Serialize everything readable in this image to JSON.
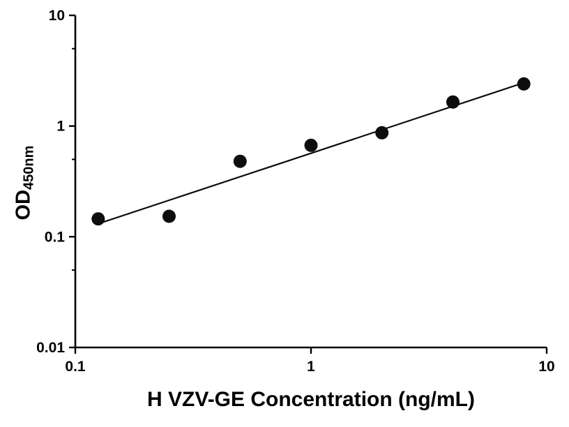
{
  "chart_data": {
    "type": "scatter",
    "title": "",
    "xlabel": "H VZV-GE Concentration (ng/mL)",
    "ylabel": "OD",
    "ylabel_subscript": "450nm",
    "x_scale": "log",
    "y_scale": "log",
    "xlim": [
      0.1,
      10
    ],
    "ylim": [
      0.01,
      10
    ],
    "x_ticks": [
      {
        "value": 0.1,
        "label": "0.1"
      },
      {
        "value": 1,
        "label": "1"
      },
      {
        "value": 10,
        "label": "10"
      }
    ],
    "y_ticks": [
      {
        "value": 10,
        "label": "10"
      },
      {
        "value": 1,
        "label": "1"
      },
      {
        "value": 0.1,
        "label": "0.1"
      },
      {
        "value": 0.01,
        "label": "0.01"
      }
    ],
    "y_minor_ticks": [
      5,
      0.5,
      0.05
    ],
    "series": [
      {
        "name": "standard-data-points",
        "type": "scatter",
        "x": [
          0.125,
          0.25,
          0.5,
          1,
          2,
          4,
          8
        ],
        "y": [
          0.145,
          0.153,
          0.48,
          0.67,
          0.87,
          1.65,
          2.4
        ]
      },
      {
        "name": "fit-line",
        "type": "line",
        "x": [
          0.125,
          8
        ],
        "y": [
          0.131,
          2.46
        ]
      }
    ],
    "marker_color": "#0d0d0d",
    "line_color": "#0d0d0d",
    "axis_color": "#000000",
    "background": "#ffffff",
    "grid": false,
    "legend": false
  }
}
